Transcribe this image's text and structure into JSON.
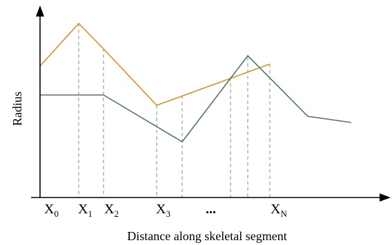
{
  "axes": {
    "x_title": "Distance along skeletal segment",
    "y_title": "Radius"
  },
  "ticks": [
    {
      "base": "X",
      "sub": "0"
    },
    {
      "base": "X",
      "sub": "1"
    },
    {
      "base": "X",
      "sub": "2"
    },
    {
      "base": "X",
      "sub": "3"
    },
    {
      "base": "X",
      "sub": "N"
    }
  ],
  "ellipsis": "...",
  "colors": {
    "series_a": "#d4901f",
    "series_b": "#4f7560",
    "axis": "#000000",
    "guide": "#8a8a8a"
  }
}
